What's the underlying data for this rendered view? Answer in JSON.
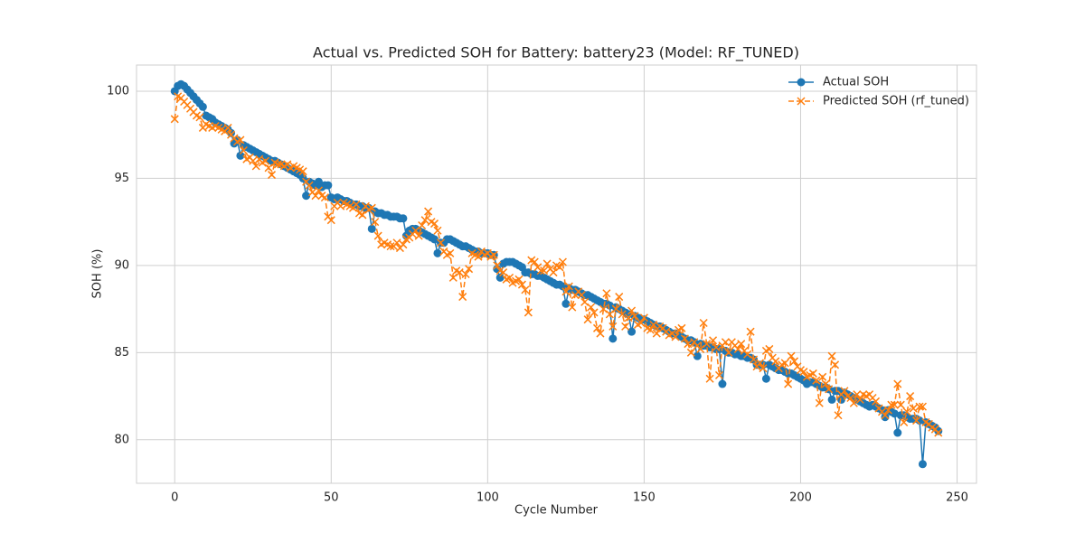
{
  "chart_data": {
    "type": "line",
    "title": "Actual vs. Predicted SOH for Battery: battery23 (Model: RF_TUNED)",
    "x_label": "Cycle Number",
    "y_label": "SOH (%)",
    "xlim": [
      -12.2,
      256.2
    ],
    "xticks": [
      0,
      50,
      100,
      150,
      200,
      250
    ],
    "ylim": [
      77.5,
      101.5
    ],
    "yticks": [
      80,
      85,
      90,
      95,
      100
    ],
    "grid": true,
    "legend": "upper right",
    "x": [
      0,
      1,
      2,
      3,
      4,
      5,
      6,
      7,
      8,
      9,
      10,
      11,
      12,
      13,
      14,
      15,
      16,
      17,
      18,
      19,
      20,
      21,
      22,
      23,
      24,
      25,
      26,
      27,
      28,
      29,
      30,
      31,
      32,
      33,
      34,
      35,
      36,
      37,
      38,
      39,
      40,
      41,
      42,
      43,
      44,
      45,
      46,
      47,
      48,
      49,
      50,
      51,
      52,
      53,
      54,
      55,
      56,
      57,
      58,
      59,
      60,
      61,
      62,
      63,
      64,
      65,
      66,
      67,
      68,
      69,
      70,
      71,
      72,
      73,
      74,
      75,
      76,
      77,
      78,
      79,
      80,
      81,
      82,
      83,
      84,
      85,
      86,
      87,
      88,
      89,
      90,
      91,
      92,
      93,
      94,
      95,
      96,
      97,
      98,
      99,
      100,
      101,
      102,
      103,
      104,
      105,
      106,
      107,
      108,
      109,
      110,
      111,
      112,
      113,
      114,
      115,
      116,
      117,
      118,
      119,
      120,
      121,
      122,
      123,
      124,
      125,
      126,
      127,
      128,
      129,
      130,
      131,
      132,
      133,
      134,
      135,
      136,
      137,
      138,
      139,
      140,
      141,
      142,
      143,
      144,
      145,
      146,
      147,
      148,
      149,
      150,
      151,
      152,
      153,
      154,
      155,
      156,
      157,
      158,
      159,
      160,
      161,
      162,
      163,
      164,
      165,
      166,
      167,
      168,
      169,
      170,
      171,
      172,
      173,
      174,
      175,
      176,
      177,
      178,
      179,
      180,
      181,
      182,
      183,
      184,
      185,
      186,
      187,
      188,
      189,
      190,
      191,
      192,
      193,
      194,
      195,
      196,
      197,
      198,
      199,
      200,
      201,
      202,
      203,
      204,
      205,
      206,
      207,
      208,
      209,
      210,
      211,
      212,
      213,
      214,
      215,
      216,
      217,
      218,
      219,
      220,
      221,
      222,
      223,
      224,
      225,
      226,
      227,
      228,
      229,
      230,
      231,
      232,
      233,
      234,
      235,
      236,
      237,
      238,
      239,
      240,
      241,
      242,
      243,
      244
    ],
    "series": [
      {
        "name": "Actual SOH",
        "color": "#1f77b4",
        "marker": "o",
        "linestyle": "solid",
        "values": [
          100.0,
          100.3,
          100.4,
          100.3,
          100.1,
          99.9,
          99.7,
          99.5,
          99.3,
          99.1,
          98.6,
          98.5,
          98.4,
          98.2,
          98.1,
          98.0,
          97.9,
          97.8,
          97.6,
          97.0,
          97.2,
          96.3,
          96.9,
          96.8,
          96.7,
          96.6,
          96.5,
          96.4,
          96.3,
          96.2,
          96.1,
          96.0,
          96.0,
          95.9,
          95.8,
          95.7,
          95.6,
          95.5,
          95.4,
          95.3,
          95.2,
          95.0,
          94.0,
          94.8,
          94.7,
          94.6,
          94.8,
          94.5,
          94.6,
          94.6,
          93.9,
          93.8,
          93.9,
          93.8,
          93.7,
          93.7,
          93.6,
          93.5,
          93.5,
          93.4,
          93.4,
          93.3,
          93.3,
          92.1,
          93.1,
          93.0,
          93.0,
          92.9,
          92.9,
          92.8,
          92.8,
          92.8,
          92.7,
          92.7,
          91.7,
          92.0,
          92.1,
          92.1,
          92.0,
          91.9,
          91.8,
          91.7,
          91.6,
          91.5,
          90.7,
          91.3,
          91.3,
          91.5,
          91.5,
          91.4,
          91.3,
          91.2,
          91.1,
          91.1,
          91.0,
          90.9,
          90.8,
          90.8,
          90.7,
          90.7,
          90.7,
          90.6,
          90.6,
          89.8,
          89.3,
          90.1,
          90.2,
          90.2,
          90.2,
          90.1,
          90.0,
          89.9,
          89.6,
          89.6,
          89.5,
          89.5,
          89.4,
          89.4,
          89.3,
          89.2,
          89.1,
          89.0,
          88.9,
          88.9,
          88.8,
          87.8,
          88.7,
          88.6,
          88.6,
          88.5,
          88.4,
          88.3,
          88.3,
          88.2,
          88.1,
          88.0,
          87.9,
          87.8,
          87.8,
          87.7,
          85.8,
          87.6,
          87.5,
          87.4,
          87.3,
          87.2,
          86.2,
          87.1,
          87.0,
          86.9,
          86.9,
          86.8,
          86.7,
          86.6,
          86.5,
          86.5,
          86.4,
          86.3,
          86.2,
          86.1,
          86.1,
          86.0,
          85.9,
          85.8,
          85.7,
          85.7,
          85.6,
          84.8,
          85.5,
          85.4,
          85.4,
          85.3,
          85.3,
          85.2,
          85.2,
          83.2,
          85.1,
          85.0,
          85.0,
          84.9,
          84.9,
          84.8,
          84.8,
          84.7,
          84.7,
          84.6,
          84.3,
          84.3,
          84.3,
          83.5,
          84.3,
          84.2,
          84.1,
          84.0,
          84.0,
          83.9,
          83.8,
          83.8,
          83.7,
          83.6,
          83.5,
          83.4,
          83.2,
          83.3,
          83.3,
          83.2,
          83.1,
          83.0,
          83.0,
          82.9,
          82.3,
          82.8,
          82.8,
          82.3,
          82.7,
          82.6,
          82.5,
          82.4,
          82.3,
          82.2,
          82.1,
          82.0,
          81.9,
          82.0,
          81.9,
          81.8,
          81.7,
          81.3,
          81.7,
          81.6,
          81.5,
          80.4,
          81.4,
          81.4,
          81.3,
          81.2,
          81.2,
          81.2,
          81.1,
          78.6,
          81.0,
          80.9,
          80.8,
          80.7,
          80.5
        ]
      },
      {
        "name": "Predicted SOH (rf_tuned)",
        "color": "#ff7f0e",
        "marker": "x",
        "linestyle": "dashed",
        "values": [
          98.4,
          99.7,
          99.6,
          99.4,
          99.2,
          99.0,
          98.8,
          98.6,
          98.5,
          97.9,
          98.1,
          98.0,
          97.9,
          98.0,
          97.9,
          97.8,
          97.7,
          97.9,
          97.5,
          97.3,
          97.1,
          97.2,
          96.6,
          96.1,
          96.2,
          96.0,
          95.7,
          96.1,
          95.9,
          96.0,
          95.6,
          95.2,
          95.9,
          95.8,
          95.8,
          95.7,
          95.8,
          95.6,
          95.7,
          95.6,
          95.5,
          95.4,
          94.8,
          94.6,
          94.2,
          94.0,
          94.3,
          94.0,
          93.9,
          92.8,
          92.6,
          93.4,
          93.6,
          93.4,
          93.6,
          93.5,
          93.4,
          93.3,
          93.5,
          93.0,
          92.9,
          93.4,
          93.2,
          93.3,
          92.5,
          91.7,
          91.2,
          91.3,
          91.2,
          91.1,
          91.1,
          91.3,
          91.0,
          91.2,
          91.5,
          91.6,
          91.8,
          92.0,
          91.7,
          92.3,
          92.6,
          93.1,
          92.5,
          92.4,
          92.0,
          91.3,
          90.8,
          90.6,
          90.7,
          89.3,
          89.7,
          89.6,
          88.2,
          89.5,
          89.8,
          90.7,
          90.6,
          90.5,
          90.8,
          90.6,
          90.7,
          90.5,
          90.6,
          90.0,
          89.7,
          89.6,
          89.2,
          89.3,
          89.0,
          89.1,
          89.2,
          88.9,
          88.6,
          87.3,
          90.3,
          90.2,
          89.9,
          89.7,
          89.7,
          90.1,
          89.8,
          89.6,
          90.0,
          89.9,
          90.2,
          88.5,
          88.8,
          87.6,
          88.3,
          88.5,
          88.3,
          87.9,
          86.9,
          87.6,
          87.3,
          86.4,
          86.1,
          87.5,
          88.4,
          87.2,
          86.5,
          87.5,
          88.2,
          87.2,
          86.5,
          87.0,
          87.4,
          87.1,
          86.6,
          86.7,
          87.0,
          86.4,
          86.3,
          86.6,
          86.1,
          86.5,
          86.4,
          86.2,
          86.0,
          86.1,
          85.9,
          86.3,
          86.4,
          85.8,
          85.5,
          85.0,
          85.6,
          85.4,
          85.2,
          86.7,
          85.5,
          83.5,
          85.7,
          85.3,
          83.7,
          85.4,
          85.6,
          85.0,
          85.6,
          85.4,
          85.2,
          85.5,
          85.1,
          84.9,
          86.2,
          84.6,
          84.2,
          84.4,
          84.1,
          85.1,
          85.2,
          84.7,
          84.5,
          84.1,
          84.3,
          84.4,
          83.2,
          84.8,
          84.5,
          84.2,
          84.0,
          83.9,
          83.6,
          83.7,
          83.8,
          83.4,
          82.1,
          83.6,
          83.2,
          82.9,
          84.8,
          84.3,
          81.4,
          82.6,
          82.8,
          82.5,
          82.4,
          82.1,
          82.6,
          82.3,
          82.6,
          82.5,
          82.6,
          82.4,
          82.2,
          81.8,
          81.6,
          81.4,
          81.7,
          82.0,
          82.0,
          83.2,
          82.0,
          81.0,
          81.6,
          82.5,
          81.8,
          81.1,
          81.9,
          81.9,
          81.0,
          80.9,
          80.7,
          80.6,
          80.4
        ]
      }
    ]
  }
}
